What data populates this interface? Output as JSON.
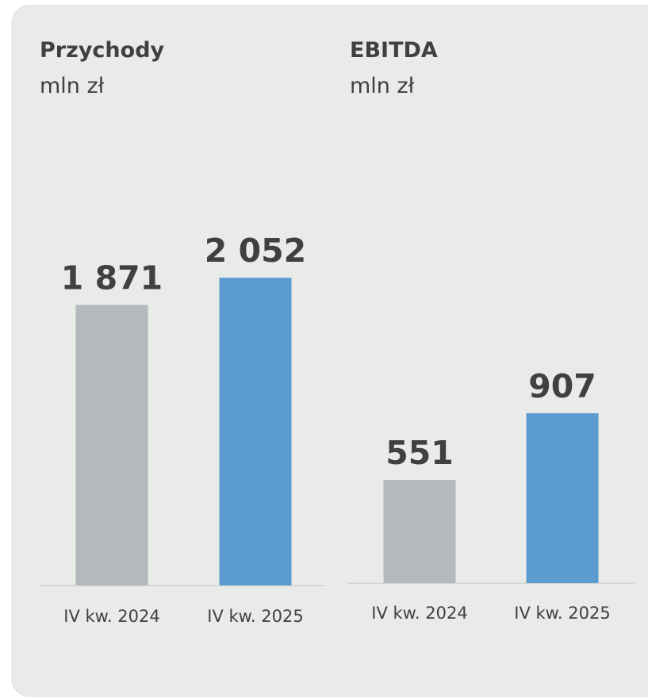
{
  "chart_data": [
    {
      "type": "bar",
      "title": "Przychody",
      "subtitle": "mln zł",
      "categories": [
        "IV kw. 2024",
        "IV kw. 2025"
      ],
      "values": [
        1871,
        2052
      ],
      "value_labels": [
        "1 871",
        "2 052"
      ],
      "colors": [
        "#b5b8bd",
        "#5b9bcf"
      ]
    },
    {
      "type": "bar",
      "title": "EBITDA",
      "subtitle": "mln zł",
      "categories": [
        "IV kw. 2024",
        "IV kw. 2025"
      ],
      "values": [
        551,
        907
      ],
      "value_labels": [
        "551",
        "907"
      ],
      "colors": [
        "#b5b8bd",
        "#5b9bcf"
      ]
    }
  ]
}
